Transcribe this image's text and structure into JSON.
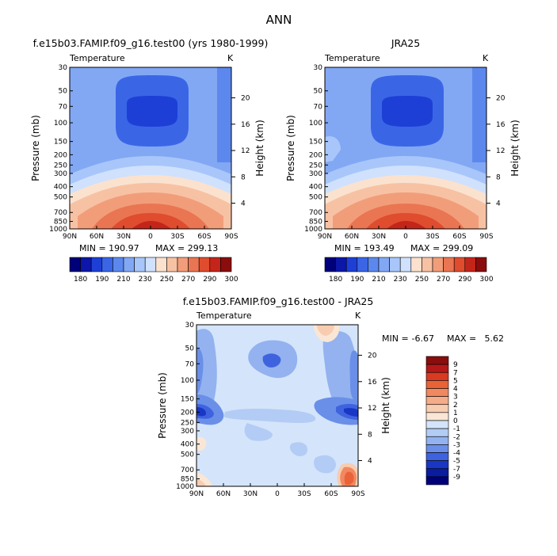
{
  "figure_title": "ANN",
  "chart_data": [
    {
      "type": "heatmap",
      "title": "f.e15b03.FAMIP.f09_g16.test00 (yrs 1980-1999)",
      "variable": "Temperature",
      "units": "K",
      "xlabel": "",
      "ylabel": "Pressure (mb)",
      "ylabel_right": "Height (km)",
      "x_ticks": [
        "90N",
        "60N",
        "30N",
        "0",
        "30S",
        "60S",
        "90S"
      ],
      "y_ticks": [
        "30",
        "50",
        "70",
        "100",
        "150",
        "200",
        "250",
        "300",
        "400",
        "500",
        "700",
        "850",
        "1000"
      ],
      "y_ticks_right": [
        "20",
        "16",
        "12",
        "8",
        "4"
      ],
      "min_label": "MIN = 190.97",
      "max_label": "MAX = 299.13",
      "min": 190.97,
      "max": 299.13,
      "colorbar": [
        "180",
        "190",
        "210",
        "230",
        "250",
        "270",
        "290",
        "300"
      ]
    },
    {
      "type": "heatmap",
      "title": "JRA25",
      "variable": "Temperature",
      "units": "K",
      "xlabel": "",
      "ylabel": "Pressure (mb)",
      "ylabel_right": "Height (km)",
      "x_ticks": [
        "90N",
        "60N",
        "30N",
        "0",
        "30S",
        "60S",
        "90S"
      ],
      "y_ticks": [
        "30",
        "50",
        "70",
        "100",
        "150",
        "200",
        "250",
        "300",
        "400",
        "500",
        "700",
        "850",
        "1000"
      ],
      "y_ticks_right": [
        "20",
        "16",
        "12",
        "8",
        "4"
      ],
      "min_label": "MIN = 193.49",
      "max_label": "MAX = 299.09",
      "min": 193.49,
      "max": 299.09,
      "colorbar": [
        "180",
        "190",
        "210",
        "230",
        "250",
        "270",
        "290",
        "300"
      ]
    },
    {
      "type": "heatmap",
      "title": "f.e15b03.FAMIP.f09_g16.test00 - JRA25",
      "variable": "Temperature",
      "units": "K",
      "xlabel": "",
      "ylabel": "Pressure (mb)",
      "ylabel_right": "Height (km)",
      "x_ticks": [
        "90N",
        "60N",
        "30N",
        "0",
        "30S",
        "60S",
        "90S"
      ],
      "y_ticks": [
        "30",
        "50",
        "70",
        "100",
        "150",
        "200",
        "250",
        "300",
        "400",
        "500",
        "700",
        "850",
        "1000"
      ],
      "y_ticks_right": [
        "20",
        "16",
        "12",
        "8",
        "4"
      ],
      "min_label": "MIN =",
      "min_value": "-6.67",
      "max_label": "MAX =",
      "max_value": "5.62",
      "min": -6.67,
      "max": 5.62,
      "colorbar": [
        "9",
        "7",
        "5",
        "4",
        "3",
        "2",
        "1",
        "0",
        "-1",
        "-2",
        "-3",
        "-4",
        "-5",
        "-7",
        "-9"
      ]
    }
  ],
  "colors": {
    "abs_scale": [
      "#00007a",
      "#0c16a8",
      "#1e3fd6",
      "#3a66e6",
      "#5c88ee",
      "#82a8f4",
      "#a8c6fa",
      "#cfe1fc",
      "#fbe2cf",
      "#f7c2a4",
      "#f29d7a",
      "#ea7552",
      "#df4c2e",
      "#c4251a",
      "#8a0d0d"
    ],
    "diff_scale": [
      "#8a0d0d",
      "#b51818",
      "#d93a22",
      "#ea6238",
      "#f18860",
      "#f5ac88",
      "#f8ccb0",
      "#fae6d5",
      "#d4e4fb",
      "#b3ccf5",
      "#93b2ef",
      "#6a8fe8",
      "#3f63df",
      "#1a36c5",
      "#0a1ca0",
      "#00007a"
    ]
  }
}
